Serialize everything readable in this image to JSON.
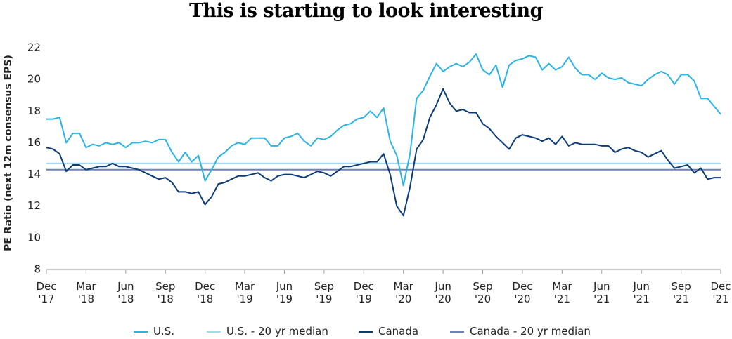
{
  "chart_data": {
    "type": "line",
    "title": "This is starting to look interesting",
    "y_label": "PE Ratio (next 12m consensus EPS)",
    "categories": [
      "Dec '17",
      null,
      null,
      null,
      null,
      null,
      "Mar '18",
      null,
      null,
      null,
      null,
      null,
      "Jun '18",
      null,
      null,
      null,
      null,
      null,
      "Sep '18",
      null,
      null,
      null,
      null,
      null,
      "Dec '18",
      null,
      null,
      null,
      null,
      null,
      "Mar '19",
      null,
      null,
      null,
      null,
      null,
      "Jun '19",
      null,
      null,
      null,
      null,
      null,
      "Sep '19",
      null,
      null,
      null,
      null,
      null,
      "Dec '19",
      null,
      null,
      null,
      null,
      null,
      "Mar '20",
      null,
      null,
      null,
      null,
      null,
      "Jun '20",
      null,
      null,
      null,
      null,
      null,
      "Sep '20",
      null,
      null,
      null,
      null,
      null,
      "Dec '20",
      null,
      null,
      null,
      null,
      null,
      "Mar '21",
      null,
      null,
      null,
      null,
      null,
      "Jun '21",
      null,
      null,
      null,
      null,
      null,
      "Jun '21",
      null,
      null,
      null,
      null,
      null,
      "Sep '21",
      null,
      null,
      null,
      null,
      null,
      "Dec '21"
    ],
    "series": [
      {
        "name": "U.S.",
        "color": "#2bb3e6",
        "values": [
          17.5,
          17.5,
          17.6,
          16.0,
          16.6,
          16.6,
          15.7,
          15.9,
          15.8,
          16.0,
          15.9,
          16.0,
          15.7,
          16.0,
          16.0,
          16.1,
          16.0,
          16.2,
          16.2,
          15.4,
          14.8,
          15.4,
          14.8,
          15.2,
          13.6,
          14.3,
          15.1,
          15.4,
          15.8,
          16.0,
          15.9,
          16.3,
          16.3,
          16.3,
          15.8,
          15.8,
          16.3,
          16.4,
          16.6,
          16.1,
          15.8,
          16.3,
          16.2,
          16.4,
          16.8,
          17.1,
          17.2,
          17.5,
          17.6,
          18.0,
          17.6,
          18.2,
          16.1,
          15.2,
          13.3,
          15.3,
          18.8,
          19.3,
          20.2,
          21.0,
          20.5,
          20.8,
          21.0,
          20.8,
          21.1,
          21.6,
          20.6,
          20.3,
          20.9,
          19.5,
          20.9,
          21.2,
          21.3,
          21.5,
          21.4,
          20.6,
          21.0,
          20.6,
          20.8,
          21.4,
          20.7,
          20.3,
          20.3,
          20.0,
          20.4,
          20.1,
          20.0,
          20.1,
          19.8,
          19.7,
          19.6,
          20.0,
          20.3,
          20.5,
          20.3,
          19.7,
          20.3,
          20.3,
          19.9,
          18.8,
          18.8,
          18.3,
          17.8
        ]
      },
      {
        "name": "Canada",
        "color": "#0c3c78",
        "values": [
          15.7,
          15.6,
          15.3,
          14.2,
          14.6,
          14.6,
          14.3,
          14.4,
          14.5,
          14.5,
          14.7,
          14.5,
          14.5,
          14.4,
          14.3,
          14.1,
          13.9,
          13.7,
          13.8,
          13.5,
          12.9,
          12.9,
          12.8,
          12.9,
          12.1,
          12.6,
          13.4,
          13.5,
          13.7,
          13.9,
          13.9,
          14.0,
          14.1,
          13.8,
          13.6,
          13.9,
          14.0,
          14.0,
          13.9,
          13.8,
          14.0,
          14.2,
          14.1,
          13.9,
          14.2,
          14.5,
          14.5,
          14.6,
          14.7,
          14.8,
          14.8,
          15.3,
          14.0,
          12.0,
          11.4,
          13.2,
          15.6,
          16.2,
          17.6,
          18.4,
          19.4,
          18.5,
          18.0,
          18.1,
          17.9,
          17.9,
          17.2,
          16.9,
          16.4,
          16.0,
          15.6,
          16.3,
          16.5,
          16.4,
          16.3,
          16.1,
          16.3,
          15.9,
          16.4,
          15.8,
          16.0,
          15.9,
          15.9,
          15.9,
          15.8,
          15.8,
          15.4,
          15.6,
          15.7,
          15.5,
          15.4,
          15.1,
          15.3,
          15.5,
          14.9,
          14.4,
          14.5,
          14.6,
          14.1,
          14.4,
          13.7,
          13.8,
          13.8
        ]
      }
    ],
    "reference_lines": [
      {
        "name": "U.S. - 20 yr median",
        "color": "#a6d8f0",
        "value": 14.7
      },
      {
        "name": "Canada - 20 yr median",
        "color": "#6f80c2",
        "value": 14.3
      }
    ],
    "legend_order": [
      "series.0",
      "reference_lines.0",
      "series.1",
      "reference_lines.1"
    ],
    "ylim": [
      8,
      22
    ],
    "yticks": [
      8,
      10,
      12,
      14,
      16,
      18,
      20,
      22
    ]
  }
}
